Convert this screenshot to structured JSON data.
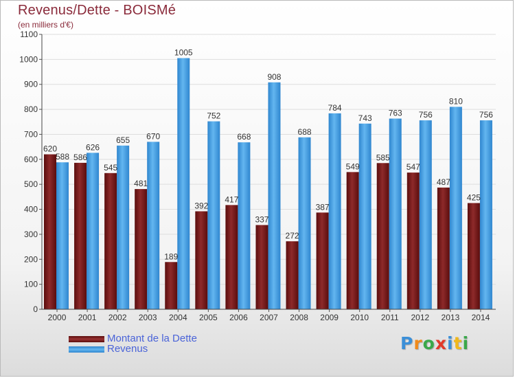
{
  "title": "Revenus/Dette - BOISMé",
  "subtitle": "(en milliers d'€)",
  "logo_text": "Proxiti",
  "chart_data": {
    "type": "bar",
    "title": "Revenus/Dette - BOISMé",
    "ylabel": "(en milliers d'€)",
    "ylim": [
      0,
      1100
    ],
    "yticks": [
      0,
      100,
      200,
      300,
      400,
      500,
      600,
      700,
      800,
      900,
      1000,
      1100
    ],
    "categories": [
      "2000",
      "2001",
      "2002",
      "2003",
      "2004",
      "2005",
      "2006",
      "2007",
      "2008",
      "2009",
      "2010",
      "2011",
      "2012",
      "2013",
      "2014"
    ],
    "series": [
      {
        "name": "Montant de la Dette",
        "color": "#7a1818",
        "values": [
          620,
          586,
          545,
          481,
          189,
          392,
          417,
          337,
          272,
          387,
          549,
          585,
          547,
          487,
          425
        ]
      },
      {
        "name": "Revenus",
        "color": "#3f9de3",
        "values": [
          588,
          626,
          655,
          670,
          1005,
          752,
          668,
          908,
          688,
          784,
          743,
          763,
          756,
          810,
          756
        ]
      }
    ],
    "grid": true,
    "legend_position": "bottom-left"
  }
}
